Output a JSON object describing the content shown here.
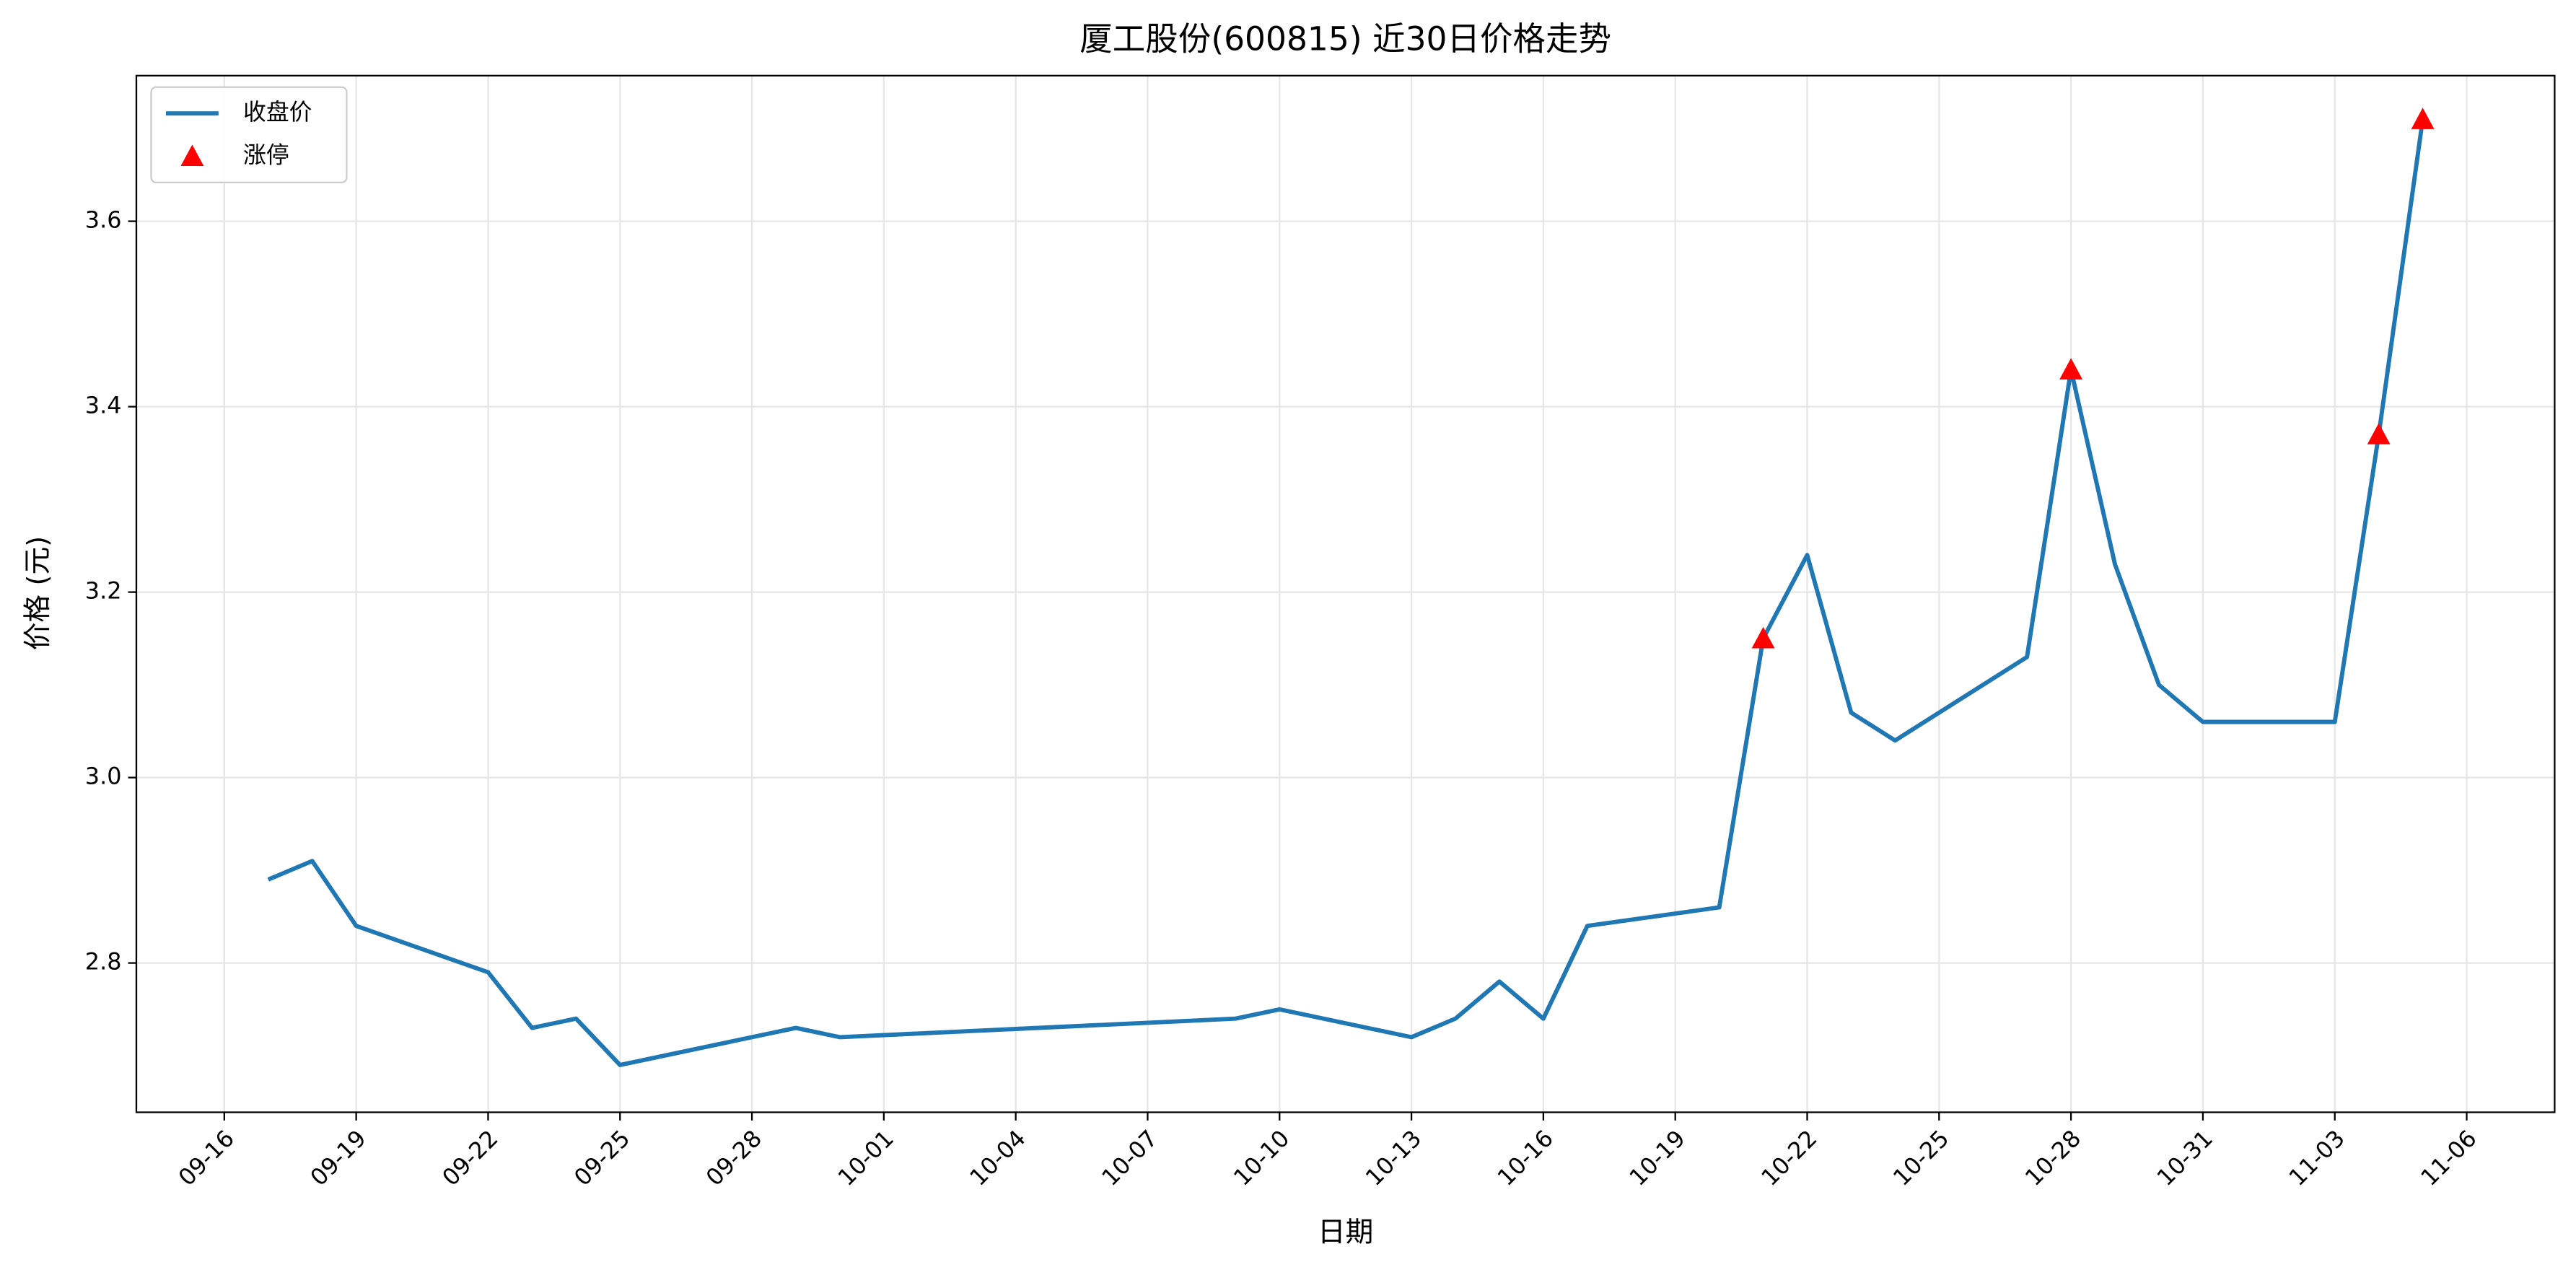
{
  "chart_data": {
    "type": "line",
    "title": "厦工股份(600815) 近30日价格走势",
    "xlabel": "日期",
    "ylabel": "价格 (元)",
    "x": [
      "09-17",
      "09-18",
      "09-19",
      "09-22",
      "09-23",
      "09-24",
      "09-25",
      "09-29",
      "09-30",
      "10-09",
      "10-10",
      "10-13",
      "10-14",
      "10-15",
      "10-16",
      "10-17",
      "10-20",
      "10-21",
      "10-22",
      "10-23",
      "10-24",
      "10-27",
      "10-28",
      "10-29",
      "10-30",
      "10-31",
      "11-03",
      "11-04",
      "11-05"
    ],
    "series": [
      {
        "name": "收盘价",
        "color": "#1f77b4",
        "kind": "line",
        "values": [
          2.89,
          2.91,
          2.84,
          2.79,
          2.73,
          2.74,
          2.69,
          2.73,
          2.72,
          2.74,
          2.75,
          2.72,
          2.74,
          2.78,
          2.74,
          2.84,
          2.86,
          3.15,
          3.24,
          3.07,
          3.04,
          3.13,
          3.44,
          3.23,
          3.1,
          3.06,
          3.06,
          3.37,
          3.71
        ]
      },
      {
        "name": "涨停",
        "color": "#ff0000",
        "kind": "marker",
        "x": [
          "10-21",
          "10-28",
          "11-04",
          "11-05"
        ],
        "values": [
          3.15,
          3.44,
          3.37,
          3.71
        ]
      }
    ],
    "xlim": [
      "09-14",
      "11-08"
    ],
    "xticks": [
      "09-16",
      "09-19",
      "09-22",
      "09-25",
      "09-28",
      "10-01",
      "10-04",
      "10-07",
      "10-10",
      "10-13",
      "10-16",
      "10-19",
      "10-22",
      "10-25",
      "10-28",
      "10-31",
      "11-03",
      "11-06"
    ],
    "ylim": [
      2.639,
      3.757
    ],
    "yticks": [
      2.8,
      {
        "value": 3,
        "label": "3.0"
      },
      3.2,
      3.4,
      3.6
    ],
    "grid": true,
    "legend": "upper left"
  }
}
